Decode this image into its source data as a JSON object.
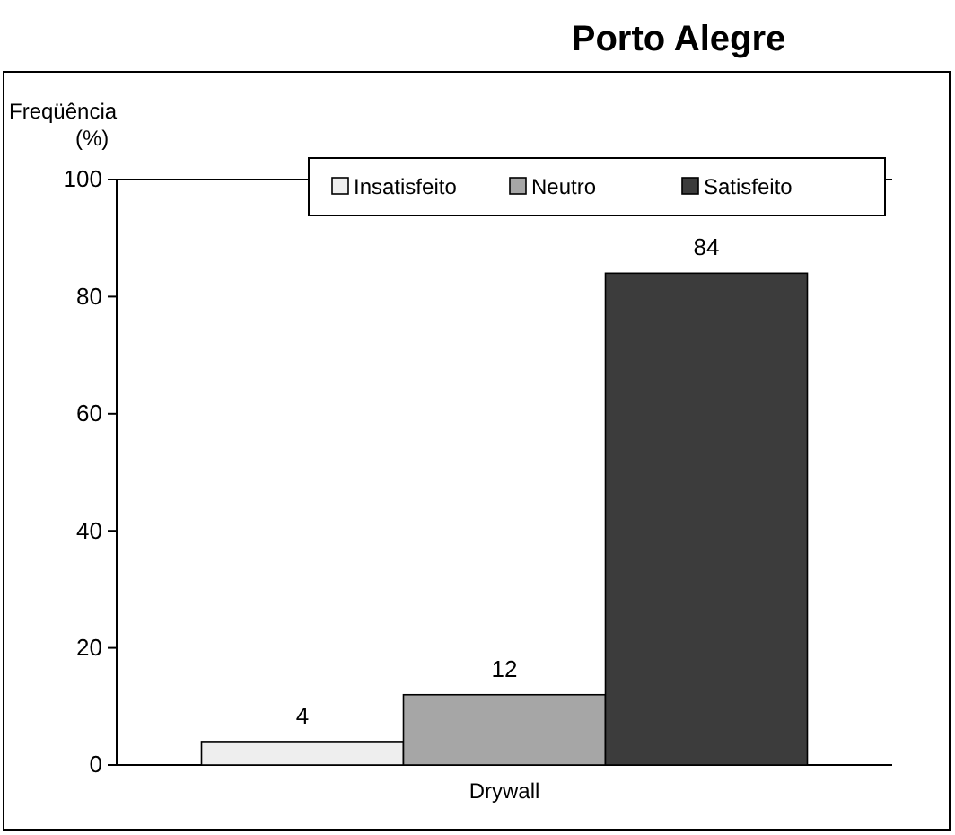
{
  "chart_data": {
    "type": "bar",
    "title": "Porto Alegre",
    "ylabel": "Freqüência\n(%)",
    "categories": [
      "Drywall"
    ],
    "series": [
      {
        "name": "Insatisfeito",
        "color": "#eeeeee",
        "values": [
          4
        ]
      },
      {
        "name": "Neutro",
        "color": "#a6a6a6",
        "values": [
          12
        ]
      },
      {
        "name": "Satisfeito",
        "color": "#3c3c3c",
        "values": [
          84
        ]
      }
    ],
    "ylim": [
      0,
      100
    ],
    "yticks": [
      0,
      20,
      40,
      60,
      80,
      100
    ],
    "data_labels": true,
    "legend": "top",
    "grid": false
  }
}
